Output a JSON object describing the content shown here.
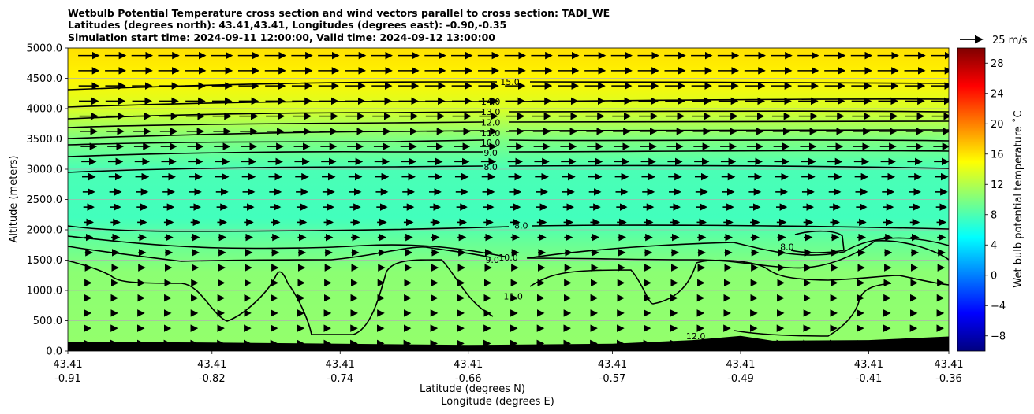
{
  "chart_data": {
    "type": "heatmap",
    "title_lines": [
      "Wetbulb Potential Temperature cross section and wind vectors parallel to cross section: TADI_WE",
      "Latitudes (degrees north): 43.41,43.41, Longitudes (degrees east): -0.90,-0.35",
      "Simulation start time: 2024-09-11 12:00:00, Valid time: 2024-09-12 13:00:00"
    ],
    "ylabel": "Altitude (meters)",
    "xlabel_lines": [
      "Latitude (degrees N)",
      "Longitude (degrees E)"
    ],
    "ylim": [
      0,
      5000
    ],
    "yticks": [
      0,
      500,
      1000,
      1500,
      2000,
      2500,
      3000,
      3500,
      4000,
      4500,
      5000
    ],
    "ytick_labels": [
      "0.0",
      "500.0",
      "1000.0",
      "1500.0",
      "2000.0",
      "2500.0",
      "3000.0",
      "3500.0",
      "4000.0",
      "4500.0",
      "5000.0"
    ],
    "grid": "horizontal",
    "x_range": [
      -0.91,
      -0.36
    ],
    "xticks_lat": [
      "43.41",
      "43.41",
      "43.41",
      "43.41",
      "43.41",
      "43.41",
      "43.41",
      "43.41"
    ],
    "xticks_lon": [
      "-0.91",
      "-0.82",
      "-0.74",
      "-0.66",
      "-0.57",
      "-0.49",
      "-0.41",
      "-0.36"
    ],
    "xtick_positions_lon": [
      -0.91,
      -0.82,
      -0.74,
      -0.66,
      -0.57,
      -0.49,
      -0.41,
      -0.36
    ],
    "colorbar": {
      "label": "Wet bulb potential temperature ˚C",
      "range": [
        -10,
        30
      ],
      "ticks": [
        -8,
        -4,
        0,
        4,
        8,
        12,
        16,
        20,
        24,
        28
      ],
      "tick_labels": [
        "−8",
        "−4",
        "0",
        "4",
        "8",
        "12",
        "16",
        "20",
        "24",
        "28"
      ],
      "colormap": "jet"
    },
    "field_layers": [
      {
        "alt": 0,
        "value": 10.8
      },
      {
        "alt": 1300,
        "value": 10.5
      },
      {
        "alt": 1800,
        "value": 9.0
      },
      {
        "alt": 2200,
        "value": 7.6
      },
      {
        "alt": 3000,
        "value": 7.9
      },
      {
        "alt": 3500,
        "value": 10.0
      },
      {
        "alt": 4000,
        "value": 13.5
      },
      {
        "alt": 4500,
        "value": 15.4
      },
      {
        "alt": 5000,
        "value": 16.2
      }
    ],
    "contour_labels": [
      {
        "text": "15.0",
        "lon": -0.634,
        "alt": 4440
      },
      {
        "text": "14.0",
        "lon": -0.646,
        "alt": 4115
      },
      {
        "text": "13.0",
        "lon": -0.646,
        "alt": 3945
      },
      {
        "text": "12.0",
        "lon": -0.646,
        "alt": 3770
      },
      {
        "text": "11.0",
        "lon": -0.646,
        "alt": 3600
      },
      {
        "text": "10.0",
        "lon": -0.646,
        "alt": 3440
      },
      {
        "text": "9.0",
        "lon": -0.646,
        "alt": 3270
      },
      {
        "text": "8.0",
        "lon": -0.646,
        "alt": 3040
      },
      {
        "text": "8.0",
        "lon": -0.627,
        "alt": 2070
      },
      {
        "text": "10.0",
        "lon": -0.635,
        "alt": 1545
      },
      {
        "text": "9.0",
        "lon": -0.645,
        "alt": 1505
      },
      {
        "text": "11.0",
        "lon": -0.632,
        "alt": 900
      },
      {
        "text": "12.0",
        "lon": -0.518,
        "alt": 250
      },
      {
        "text": "8.0",
        "lon": -0.461,
        "alt": 1720
      }
    ],
    "wind_vectors": {
      "reference_label": "25 m/s",
      "reference_speed_ms": 25,
      "direction": "west-to-east (parallel to cross section)",
      "profile": [
        {
          "alt": 100,
          "speed_ms": 4
        },
        {
          "alt": 1000,
          "speed_ms": 5
        },
        {
          "alt": 1500,
          "speed_ms": 7
        },
        {
          "alt": 2000,
          "speed_ms": 9
        },
        {
          "alt": 2500,
          "speed_ms": 12
        },
        {
          "alt": 3000,
          "speed_ms": 15
        },
        {
          "alt": 3500,
          "speed_ms": 18
        },
        {
          "alt": 4000,
          "speed_ms": 21
        },
        {
          "alt": 4750,
          "speed_ms": 23
        }
      ]
    },
    "terrain": [
      {
        "lon": -0.91,
        "alt": 150
      },
      {
        "lon": -0.82,
        "alt": 140
      },
      {
        "lon": -0.74,
        "alt": 120
      },
      {
        "lon": -0.66,
        "alt": 100
      },
      {
        "lon": -0.57,
        "alt": 120
      },
      {
        "lon": -0.52,
        "alt": 180
      },
      {
        "lon": -0.49,
        "alt": 250
      },
      {
        "lon": -0.47,
        "alt": 170
      },
      {
        "lon": -0.41,
        "alt": 180
      },
      {
        "lon": -0.36,
        "alt": 240
      }
    ]
  }
}
